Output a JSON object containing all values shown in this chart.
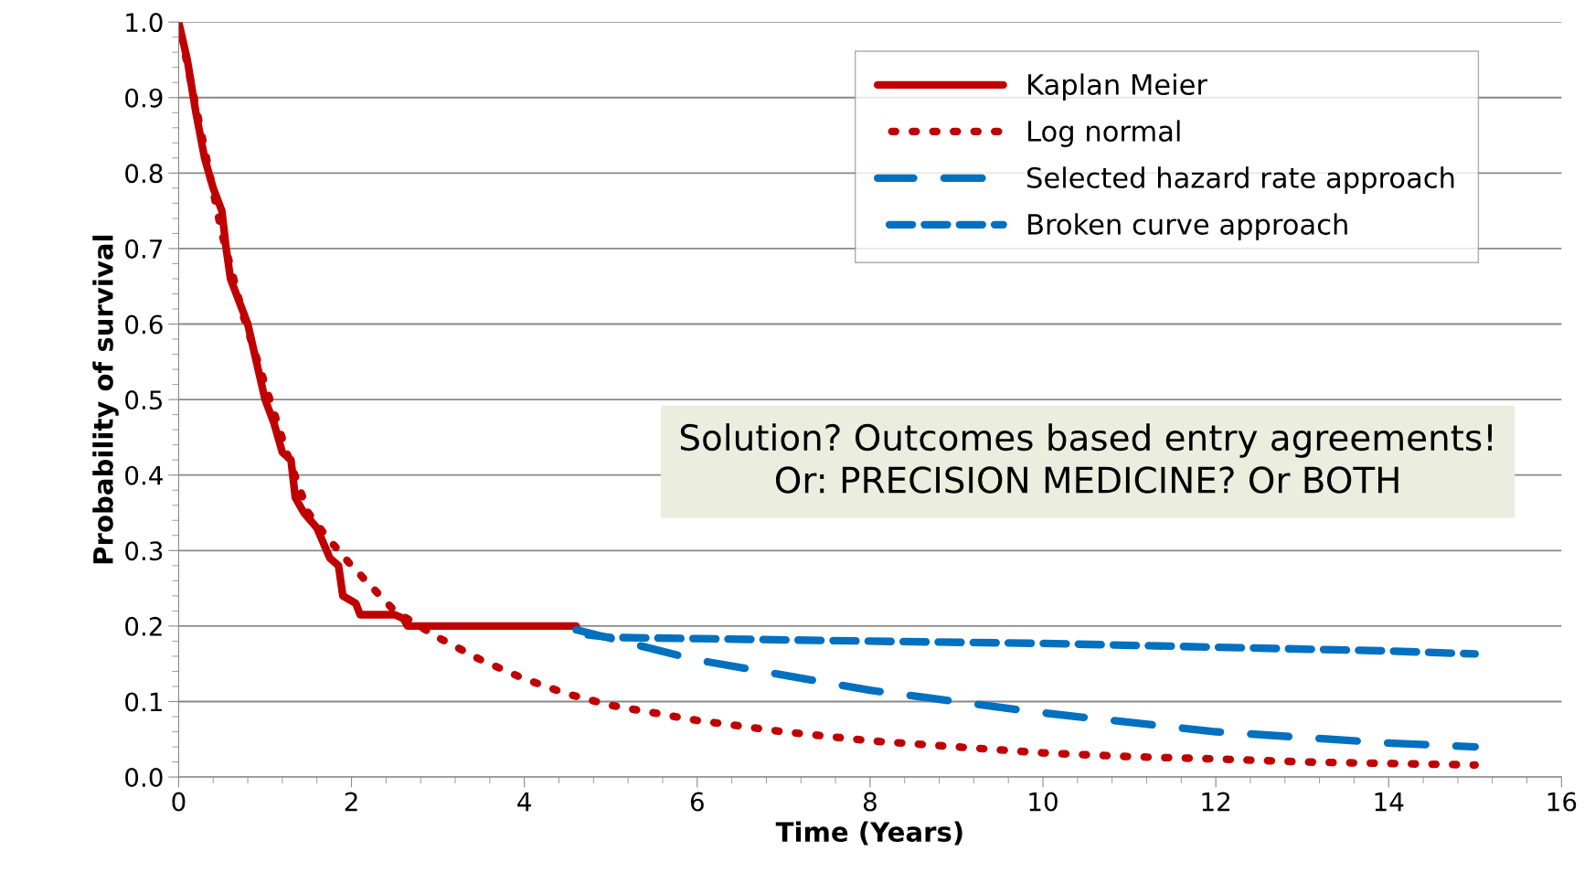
{
  "chart_data": {
    "type": "line",
    "xlabel": "Time (Years)",
    "ylabel": "Probability of survival",
    "xlim": [
      0,
      16
    ],
    "xticks": [
      0,
      2,
      4,
      6,
      8,
      10,
      12,
      14,
      16
    ],
    "ylim": [
      0,
      1.0
    ],
    "yticks": [
      {
        "value": 0,
        "label": "0.0"
      },
      {
        "value": 0.1,
        "label": "0.1"
      },
      {
        "value": 0.2,
        "label": "0.2"
      },
      {
        "value": 0.3,
        "label": "0.3"
      },
      {
        "value": 0.4,
        "label": "0.4"
      },
      {
        "value": 0.5,
        "label": "0.5"
      },
      {
        "value": 0.6,
        "label": "0.6"
      },
      {
        "value": 0.7,
        "label": "0.7"
      },
      {
        "value": 0.8,
        "label": "0.8"
      },
      {
        "value": 0.9,
        "label": "0.9"
      },
      {
        "value": 1.0,
        "label": "1.0"
      }
    ],
    "grid": "y",
    "legend": "top right",
    "marker": "none",
    "series": [
      {
        "name": "Kaplan Meier",
        "color": "#c00000",
        "line_style": "solid",
        "x": [
          0,
          0.1,
          0.2,
          0.3,
          0.4,
          0.5,
          0.55,
          0.6,
          0.8,
          0.9,
          1.0,
          1.1,
          1.2,
          1.3,
          1.35,
          1.45,
          1.6,
          1.75,
          1.85,
          1.9,
          2.05,
          2.1,
          2.5,
          2.6,
          2.65,
          4.6
        ],
        "values": [
          1.0,
          0.95,
          0.88,
          0.82,
          0.78,
          0.75,
          0.7,
          0.66,
          0.6,
          0.55,
          0.5,
          0.47,
          0.43,
          0.42,
          0.37,
          0.35,
          0.33,
          0.29,
          0.28,
          0.24,
          0.23,
          0.215,
          0.215,
          0.21,
          0.2,
          0.2
        ]
      },
      {
        "name": "Log normal",
        "color": "#c00000",
        "line_style": "dotted",
        "x": [
          0,
          0.25,
          0.5,
          0.75,
          1.0,
          1.25,
          1.5,
          1.7,
          2.0,
          2.5,
          3,
          3.5,
          4,
          4.5,
          5,
          6,
          7,
          8,
          9,
          10,
          11,
          12,
          13,
          14,
          15
        ],
        "values": [
          1.0,
          0.86,
          0.72,
          0.61,
          0.52,
          0.43,
          0.35,
          0.32,
          0.28,
          0.22,
          0.185,
          0.155,
          0.13,
          0.11,
          0.095,
          0.075,
          0.06,
          0.048,
          0.04,
          0.032,
          0.027,
          0.024,
          0.02,
          0.018,
          0.016
        ]
      },
      {
        "name": "Selected hazard rate approach",
        "color": "#0070c0",
        "line_style": "longdash",
        "x": [
          4.6,
          6,
          8,
          10,
          12,
          14,
          15
        ],
        "values": [
          0.195,
          0.155,
          0.115,
          0.085,
          0.06,
          0.045,
          0.04
        ]
      },
      {
        "name": "Broken curve approach",
        "color": "#0070c0",
        "line_style": "dashed",
        "x": [
          4.6,
          5,
          8,
          10,
          12,
          14,
          15
        ],
        "values": [
          0.19,
          0.185,
          0.18,
          0.177,
          0.172,
          0.167,
          0.163
        ]
      }
    ],
    "annotations": [
      "Solution? Outcomes based entry agreements!\nOr: PRECISION MEDICINE? Or BOTH"
    ]
  }
}
